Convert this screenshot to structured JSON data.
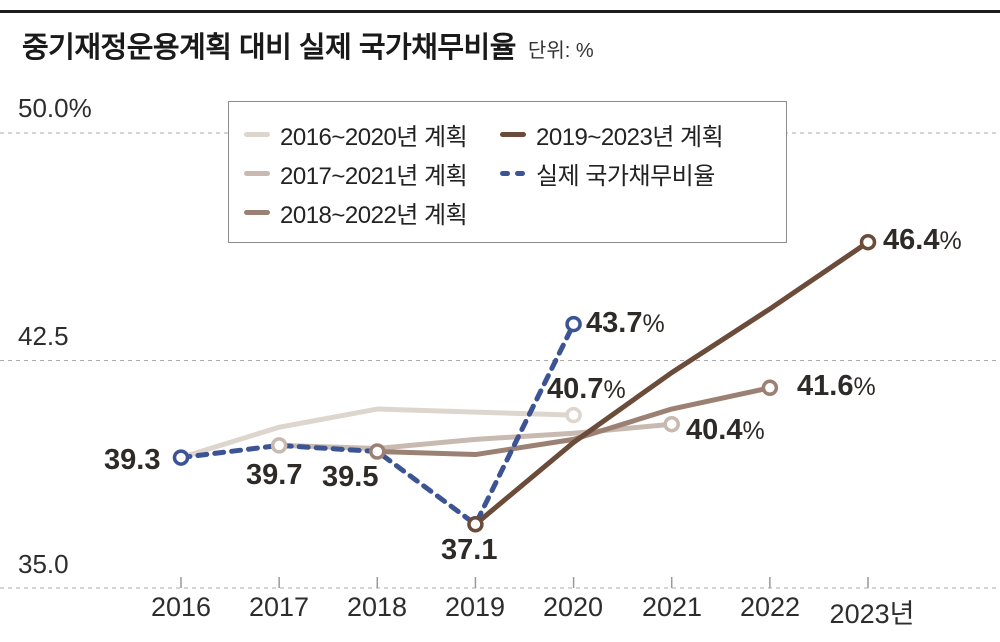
{
  "header": {
    "title": "중기재정운용계획 대비 실제 국가채무비율",
    "unit_label": "단위: %"
  },
  "colors": {
    "plan_2016_2020": "#ddd6ce",
    "plan_2017_2021": "#c8bab0",
    "plan_2018_2022": "#9b8173",
    "plan_2019_2023": "#6b4b3a",
    "actual": "#3c5493",
    "gridline": "#ababab",
    "axis_text": "#2d2d2d",
    "title_text": "#1a1a1a"
  },
  "chart_data": {
    "type": "line",
    "title": "중기재정운용계획 대비 실제 국가채무비율",
    "unit": "%",
    "ylim": [
      35,
      50
    ],
    "grid": "horizontal-dashed",
    "legend_position": "top-left-inside",
    "yticks": [
      {
        "value": 50.0,
        "label": "50.0%"
      },
      {
        "value": 42.5,
        "label": "42.5"
      },
      {
        "value": 35.0,
        "label": "35.0"
      }
    ],
    "years": [
      2016,
      2017,
      2018,
      2019,
      2020,
      2021,
      2022,
      2023
    ],
    "xlabels": [
      "2016",
      "2017",
      "2018",
      "2019",
      "2020",
      "2021",
      "2022",
      "2023년"
    ],
    "series": [
      {
        "name": "2016~2020년 계획",
        "color": "#ddd6ce",
        "dashed": false,
        "start_year": 2016,
        "values": [
          39.3,
          40.3,
          40.9,
          40.8,
          40.7
        ]
      },
      {
        "name": "2017~2021년 계획",
        "color": "#c8bab0",
        "dashed": false,
        "start_year": 2017,
        "values": [
          39.7,
          39.6,
          39.9,
          40.1,
          40.4
        ]
      },
      {
        "name": "2018~2022년 계획",
        "color": "#9b8173",
        "dashed": false,
        "start_year": 2018,
        "values": [
          39.5,
          39.4,
          39.9,
          40.9,
          41.6
        ]
      },
      {
        "name": "2019~2023년 계획",
        "color": "#6b4b3a",
        "dashed": false,
        "start_year": 2019,
        "values": [
          37.1,
          39.8,
          42.1,
          44.2,
          46.4
        ]
      },
      {
        "name": "실제 국가채무비율",
        "color": "#3c5493",
        "dashed": true,
        "start_year": 2016,
        "values": [
          39.3,
          39.7,
          39.5,
          37.1,
          43.7
        ]
      }
    ],
    "point_labels": [
      {
        "text": "39.3",
        "unit": "",
        "series": "실제 국가채무비율",
        "year": 2016
      },
      {
        "text": "39.7",
        "unit": "",
        "series": "실제 국가채무비율",
        "year": 2017
      },
      {
        "text": "39.5",
        "unit": "",
        "series": "실제 국가채무비율",
        "year": 2018
      },
      {
        "text": "37.1",
        "unit": "",
        "series": "2019~2023년 계획",
        "year": 2019
      },
      {
        "text": "43.7",
        "unit": "%",
        "series": "실제 국가채무비율",
        "year": 2020
      },
      {
        "text": "40.7",
        "unit": "%",
        "series": "2016~2020년 계획",
        "year": 2020
      },
      {
        "text": "40.4",
        "unit": "%",
        "series": "2017~2021년 계획",
        "year": 2021
      },
      {
        "text": "41.6",
        "unit": "%",
        "series": "2018~2022년 계획",
        "year": 2022
      },
      {
        "text": "46.4",
        "unit": "%",
        "series": "2019~2023년 계획",
        "year": 2023
      }
    ]
  }
}
